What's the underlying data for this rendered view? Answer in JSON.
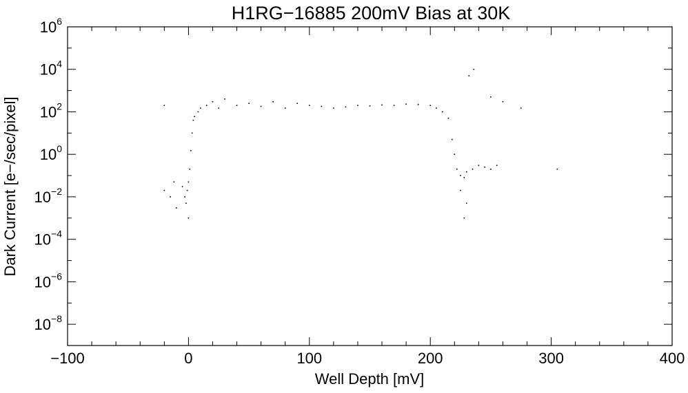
{
  "chart_data": {
    "type": "scatter",
    "title": "H1RG−16885 200mV Bias at 30K",
    "xlabel": "Well Depth [mV]",
    "ylabel": "Dark Current [e−/sec/pixel]",
    "xlim": [
      -100,
      400
    ],
    "ylim": [
      1e-09,
      1000000.0
    ],
    "yscale": "log",
    "grid": false,
    "x_ticks": [
      -100,
      0,
      100,
      200,
      300,
      400
    ],
    "x_tick_labels": [
      "−100",
      "0",
      "100",
      "200",
      "300",
      "400"
    ],
    "y_ticks": [
      {
        "value": 1e-08,
        "base": "10",
        "exp": "−8"
      },
      {
        "value": 1e-06,
        "base": "10",
        "exp": "−6"
      },
      {
        "value": 0.0001,
        "base": "10",
        "exp": "−4"
      },
      {
        "value": 0.01,
        "base": "10",
        "exp": "−2"
      },
      {
        "value": 1,
        "base": "10",
        "exp": "0"
      },
      {
        "value": 100,
        "base": "10",
        "exp": "2"
      },
      {
        "value": 10000,
        "base": "10",
        "exp": "4"
      },
      {
        "value": 1000000,
        "base": "10",
        "exp": "6"
      }
    ],
    "marker_color": "#000000",
    "points": [
      [
        -20,
        0.02
      ],
      [
        -15,
        0.01
      ],
      [
        -12,
        0.05
      ],
      [
        -10,
        0.003
      ],
      [
        -5,
        0.03
      ],
      [
        -3,
        0.01
      ],
      [
        -2,
        0.005
      ],
      [
        -1,
        0.02
      ],
      [
        0,
        0.001
      ],
      [
        0,
        0.05
      ],
      [
        1,
        0.2
      ],
      [
        2,
        1.5
      ],
      [
        3,
        10
      ],
      [
        4,
        40
      ],
      [
        5,
        60
      ],
      [
        8,
        100
      ],
      [
        10,
        150
      ],
      [
        15,
        200
      ],
      [
        20,
        300
      ],
      [
        25,
        150
      ],
      [
        30,
        400
      ],
      [
        40,
        200
      ],
      [
        50,
        250
      ],
      [
        60,
        180
      ],
      [
        70,
        300
      ],
      [
        80,
        150
      ],
      [
        90,
        250
      ],
      [
        100,
        200
      ],
      [
        110,
        180
      ],
      [
        120,
        150
      ],
      [
        130,
        170
      ],
      [
        140,
        200
      ],
      [
        150,
        190
      ],
      [
        160,
        210
      ],
      [
        170,
        200
      ],
      [
        180,
        230
      ],
      [
        190,
        220
      ],
      [
        200,
        200
      ],
      [
        205,
        150
      ],
      [
        210,
        100
      ],
      [
        215,
        50
      ],
      [
        218,
        5
      ],
      [
        220,
        1
      ],
      [
        222,
        0.2
      ],
      [
        225,
        0.1
      ],
      [
        228,
        0.08
      ],
      [
        230,
        0.15
      ],
      [
        235,
        0.2
      ],
      [
        240,
        0.3
      ],
      [
        245,
        0.25
      ],
      [
        250,
        0.2
      ],
      [
        255,
        0.3
      ],
      [
        225,
        0.02
      ],
      [
        230,
        0.005
      ],
      [
        228,
        0.001
      ],
      [
        232,
        5000
      ],
      [
        236,
        10000
      ],
      [
        250,
        500
      ],
      [
        260,
        300
      ],
      [
        275,
        150
      ],
      [
        305,
        0.2
      ],
      [
        -20,
        200
      ]
    ]
  }
}
